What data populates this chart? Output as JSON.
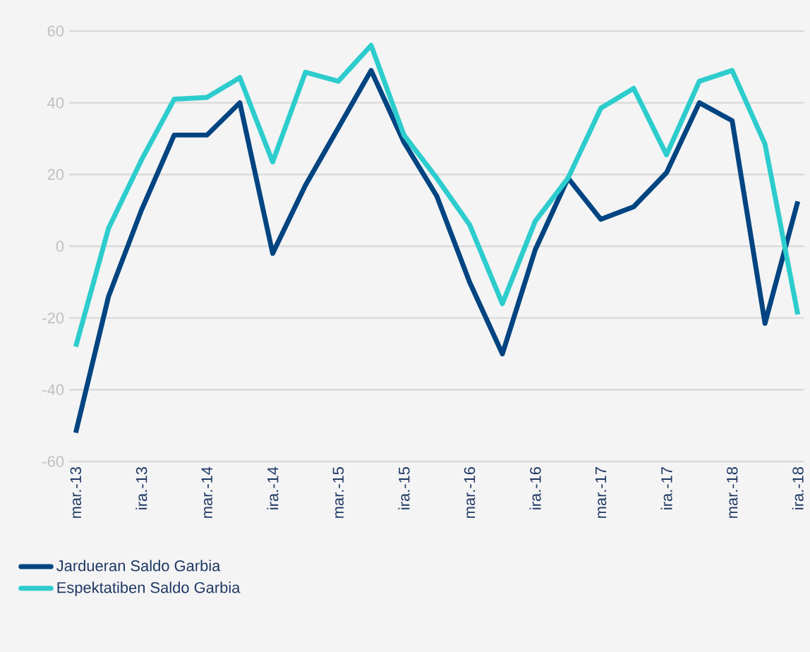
{
  "chart_data": {
    "type": "line",
    "categories": [
      "mar.-13",
      null,
      "ira.-13",
      null,
      "mar.-14",
      null,
      "ira.-14",
      null,
      "mar.-15",
      null,
      "ira.-15",
      null,
      "mar.-16",
      null,
      "ira.-16",
      null,
      "mar.-17",
      null,
      "ira.-17",
      null,
      "mar.-18",
      null,
      "ira.-18"
    ],
    "series": [
      {
        "name": "Jardueran Saldo Garbia",
        "color": "#004481",
        "values": [
          -52,
          -14,
          10,
          31,
          31,
          40,
          -2,
          17,
          33,
          49,
          29,
          14,
          -10,
          -30,
          -1,
          19,
          7.5,
          11,
          20.5,
          40,
          35,
          -21.5,
          12.5
        ]
      },
      {
        "name": "Espektatiben Saldo Garbia",
        "color": "#2dcccd",
        "values": [
          -28,
          5,
          24,
          41,
          41.5,
          47,
          23.5,
          48.5,
          46,
          56,
          31,
          19,
          6,
          -16,
          7,
          19,
          38.5,
          44,
          25.5,
          46,
          49,
          28.5,
          -19
        ]
      }
    ],
    "ylim": [
      -60,
      60
    ],
    "yticks": [
      -60,
      -40,
      -20,
      0,
      20,
      40,
      60
    ],
    "grid": "y",
    "legend": "bottom left",
    "marker": "none",
    "line_style": "solid"
  }
}
